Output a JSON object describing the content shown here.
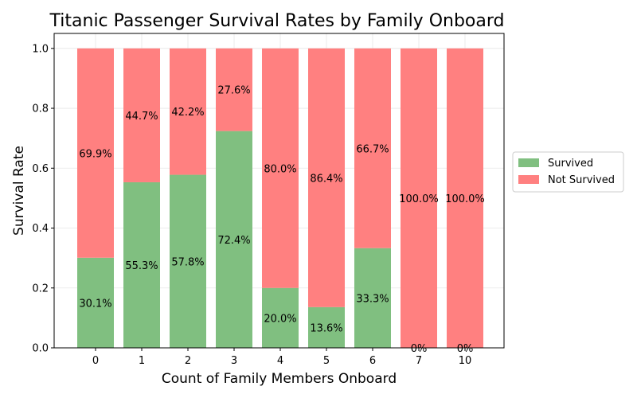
{
  "chart_data": {
    "type": "bar",
    "stacked": true,
    "title": "Titanic Passenger Survival Rates by Family Onboard",
    "xlabel": "Count of Family Members Onboard",
    "ylabel": "Survival Rate",
    "categories": [
      "0",
      "1",
      "2",
      "3",
      "4",
      "5",
      "6",
      "7",
      "10"
    ],
    "ylim": [
      0,
      1.05
    ],
    "yticks": [
      "0.0",
      "0.2",
      "0.4",
      "0.6",
      "0.8",
      "1.0"
    ],
    "grid": true,
    "legend_position": "right",
    "series": [
      {
        "name": "Survived",
        "color": "#80bf80",
        "values": [
          0.301,
          0.553,
          0.578,
          0.724,
          0.2,
          0.136,
          0.333,
          0.0,
          0.0
        ],
        "labels": [
          "30.1%",
          "55.3%",
          "57.8%",
          "72.4%",
          "20.0%",
          "13.6%",
          "33.3%",
          "0%",
          "0%"
        ]
      },
      {
        "name": "Not Survived",
        "color": "#ff8080",
        "values": [
          0.699,
          0.447,
          0.422,
          0.276,
          0.8,
          0.864,
          0.667,
          1.0,
          1.0
        ],
        "labels": [
          "69.9%",
          "44.7%",
          "42.2%",
          "27.6%",
          "80.0%",
          "86.4%",
          "66.7%",
          "100.0%",
          "100.0%"
        ]
      }
    ]
  }
}
